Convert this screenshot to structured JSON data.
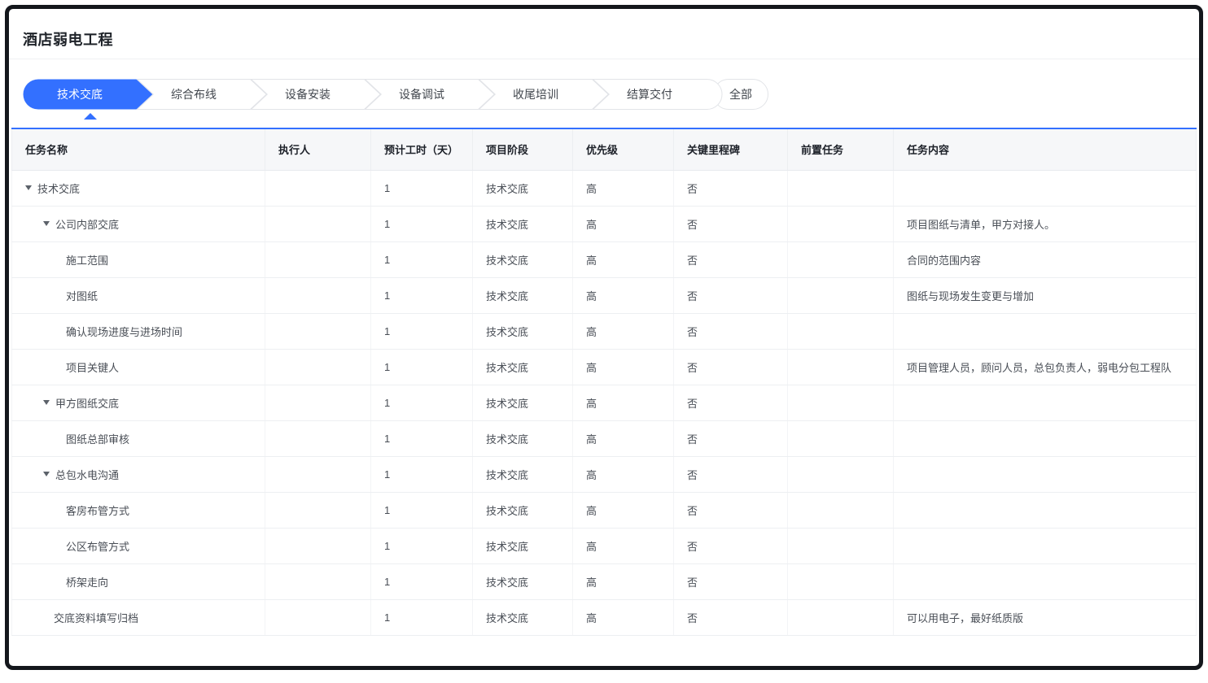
{
  "title": "酒店弱电工程",
  "colors": {
    "accent": "#3370ff",
    "frame_border": "#14171c",
    "header_bg": "#f6f7f9"
  },
  "tabs": [
    {
      "label": "技术交底",
      "active": true
    },
    {
      "label": "综合布线",
      "active": false
    },
    {
      "label": "设备安装",
      "active": false
    },
    {
      "label": "设备调试",
      "active": false
    },
    {
      "label": "收尾培训",
      "active": false
    },
    {
      "label": "结算交付",
      "active": false
    }
  ],
  "all_tab_label": "全部",
  "table": {
    "columns": [
      "任务名称",
      "执行人",
      "预计工时（天）",
      "项目阶段",
      "优先级",
      "关键里程碑",
      "前置任务",
      "任务内容"
    ],
    "rows": [
      {
        "level": 0,
        "caret": true,
        "name": "技术交底",
        "executor": "",
        "hours": "1",
        "phase": "技术交底",
        "priority": "高",
        "milestone": "否",
        "predecessor": "",
        "content": ""
      },
      {
        "level": 1,
        "caret": true,
        "name": "公司内部交底",
        "executor": "",
        "hours": "1",
        "phase": "技术交底",
        "priority": "高",
        "milestone": "否",
        "predecessor": "",
        "content": "项目图纸与清单，甲方对接人。"
      },
      {
        "level": 2,
        "caret": false,
        "name": "施工范围",
        "executor": "",
        "hours": "1",
        "phase": "技术交底",
        "priority": "高",
        "milestone": "否",
        "predecessor": "",
        "content": "合同的范围内容"
      },
      {
        "level": 2,
        "caret": false,
        "name": "对图纸",
        "executor": "",
        "hours": "1",
        "phase": "技术交底",
        "priority": "高",
        "milestone": "否",
        "predecessor": "",
        "content": "图纸与现场发生变更与增加"
      },
      {
        "level": 2,
        "caret": false,
        "name": "确认现场进度与进场时间",
        "executor": "",
        "hours": "1",
        "phase": "技术交底",
        "priority": "高",
        "milestone": "否",
        "predecessor": "",
        "content": ""
      },
      {
        "level": 2,
        "caret": false,
        "name": "项目关键人",
        "executor": "",
        "hours": "1",
        "phase": "技术交底",
        "priority": "高",
        "milestone": "否",
        "predecessor": "",
        "content": "项目管理人员，顾问人员，总包负责人，弱电分包工程队"
      },
      {
        "level": 1,
        "caret": true,
        "name": "甲方图纸交底",
        "executor": "",
        "hours": "1",
        "phase": "技术交底",
        "priority": "高",
        "milestone": "否",
        "predecessor": "",
        "content": ""
      },
      {
        "level": 2,
        "caret": false,
        "name": "图纸总部审核",
        "executor": "",
        "hours": "1",
        "phase": "技术交底",
        "priority": "高",
        "milestone": "否",
        "predecessor": "",
        "content": ""
      },
      {
        "level": 1,
        "caret": true,
        "name": "总包水电沟通",
        "executor": "",
        "hours": "1",
        "phase": "技术交底",
        "priority": "高",
        "milestone": "否",
        "predecessor": "",
        "content": ""
      },
      {
        "level": 2,
        "caret": false,
        "name": "客房布管方式",
        "executor": "",
        "hours": "1",
        "phase": "技术交底",
        "priority": "高",
        "milestone": "否",
        "predecessor": "",
        "content": ""
      },
      {
        "level": 2,
        "caret": false,
        "name": "公区布管方式",
        "executor": "",
        "hours": "1",
        "phase": "技术交底",
        "priority": "高",
        "milestone": "否",
        "predecessor": "",
        "content": ""
      },
      {
        "level": 2,
        "caret": false,
        "name": "桥架走向",
        "executor": "",
        "hours": "1",
        "phase": "技术交底",
        "priority": "高",
        "milestone": "否",
        "predecessor": "",
        "content": ""
      },
      {
        "level": 1,
        "caret": false,
        "name": "交底资料填写归档",
        "executor": "",
        "hours": "1",
        "phase": "技术交底",
        "priority": "高",
        "milestone": "否",
        "predecessor": "",
        "content": "可以用电子，最好纸质版"
      }
    ]
  }
}
